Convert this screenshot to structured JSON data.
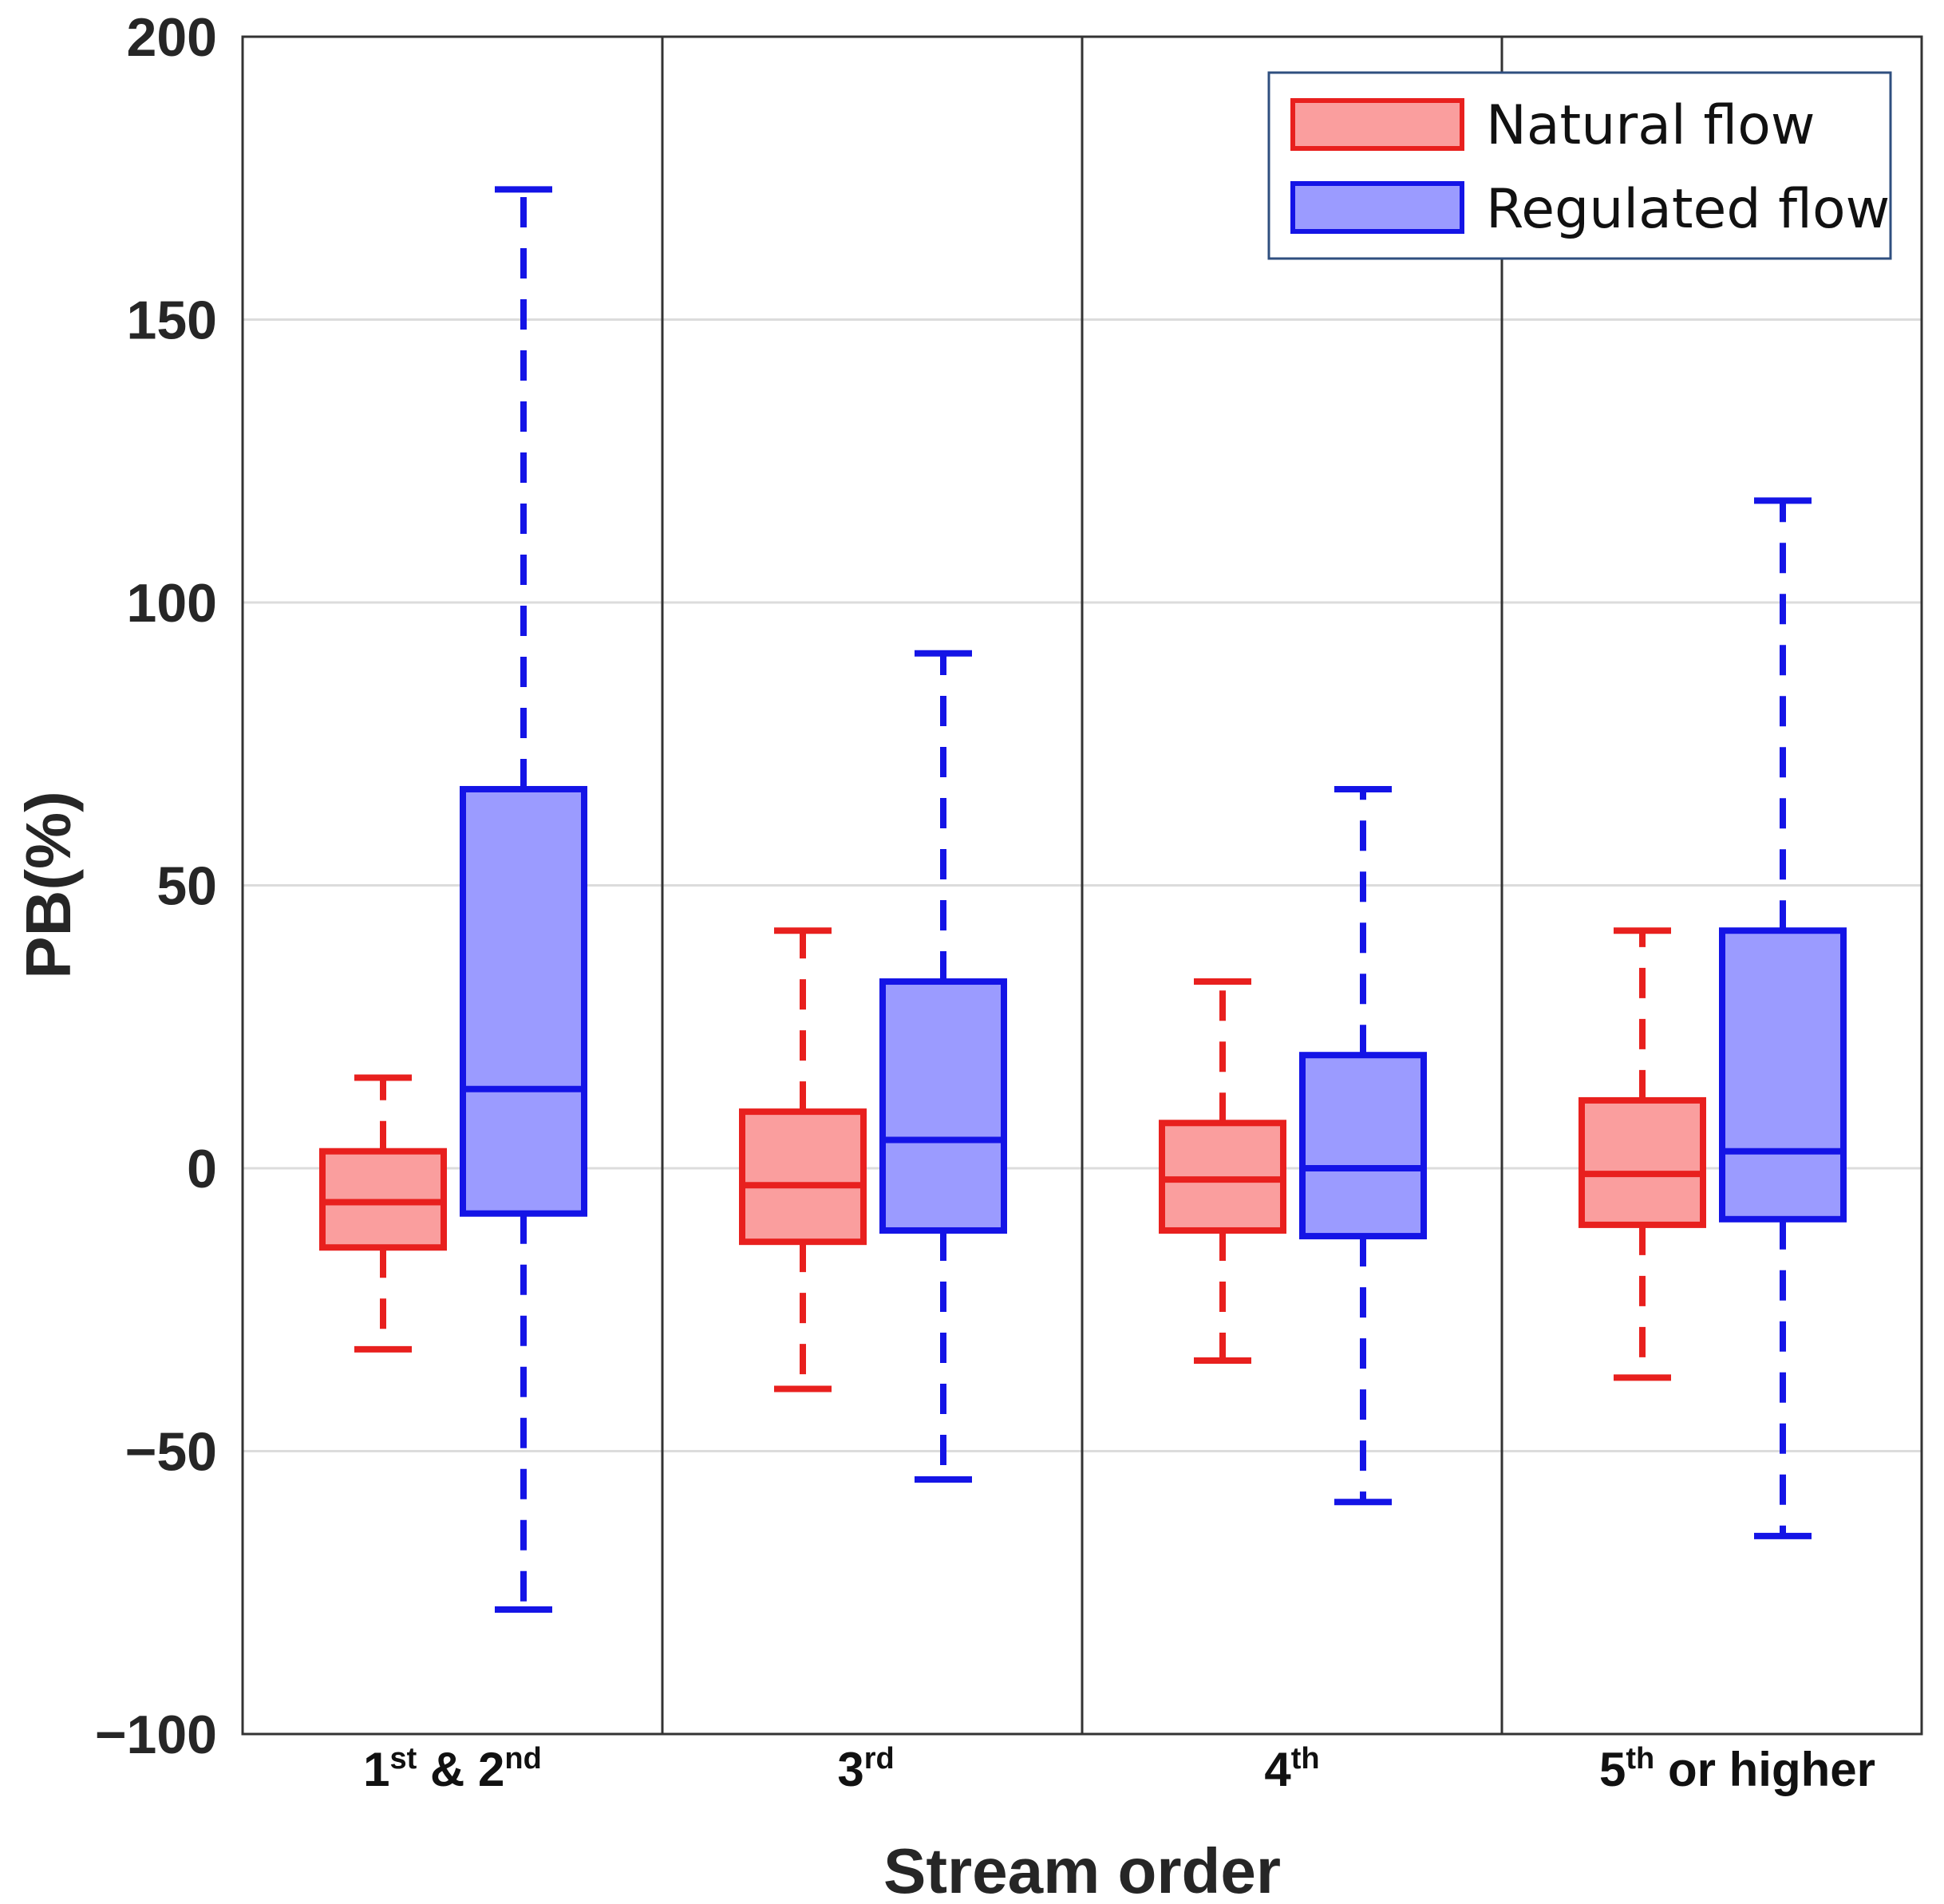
{
  "chart_data": {
    "type": "box",
    "ylabel": "PB(%)",
    "xlabel": "Stream order",
    "ylim": [
      -100,
      200
    ],
    "yticks": [
      -100,
      -50,
      0,
      50,
      100,
      150,
      200
    ],
    "ytick_labels": [
      "−100",
      "−50",
      "0",
      "50",
      "100",
      "150",
      "200"
    ],
    "grid": "horizontal",
    "legend_position": "top-right",
    "categories": [
      {
        "main": "1",
        "sup": "st",
        "rest": " & 2",
        "sup2": "nd",
        "tail": ""
      },
      {
        "main": "3",
        "sup": "rd",
        "rest": "",
        "sup2": "",
        "tail": ""
      },
      {
        "main": "4",
        "sup": "th",
        "rest": "",
        "sup2": "",
        "tail": ""
      },
      {
        "main": "5",
        "sup": "th",
        "rest": " or higher",
        "sup2": "",
        "tail": ""
      }
    ],
    "series": [
      {
        "name": "Natural flow",
        "stroke": "#e8201e",
        "fill": "#fa9e9e",
        "boxes": [
          {
            "whisker_low": -32,
            "q1": -14,
            "median": -6,
            "q3": 3,
            "whisker_high": 16
          },
          {
            "whisker_low": -39,
            "q1": -13,
            "median": -3,
            "q3": 10,
            "whisker_high": 42
          },
          {
            "whisker_low": -34,
            "q1": -11,
            "median": -2,
            "q3": 8,
            "whisker_high": 33
          },
          {
            "whisker_low": -37,
            "q1": -10,
            "median": -1,
            "q3": 12,
            "whisker_high": 42
          }
        ]
      },
      {
        "name": "Regulated flow",
        "stroke": "#1414e6",
        "fill": "#9b9bff",
        "boxes": [
          {
            "whisker_low": -78,
            "q1": -8,
            "median": 14,
            "q3": 67,
            "whisker_high": 173
          },
          {
            "whisker_low": -55,
            "q1": -11,
            "median": 5,
            "q3": 33,
            "whisker_high": 91
          },
          {
            "whisker_low": -59,
            "q1": -12,
            "median": 0,
            "q3": 20,
            "whisker_high": 67
          },
          {
            "whisker_low": -65,
            "q1": -9,
            "median": 3,
            "q3": 42,
            "whisker_high": 118
          }
        ]
      }
    ]
  }
}
